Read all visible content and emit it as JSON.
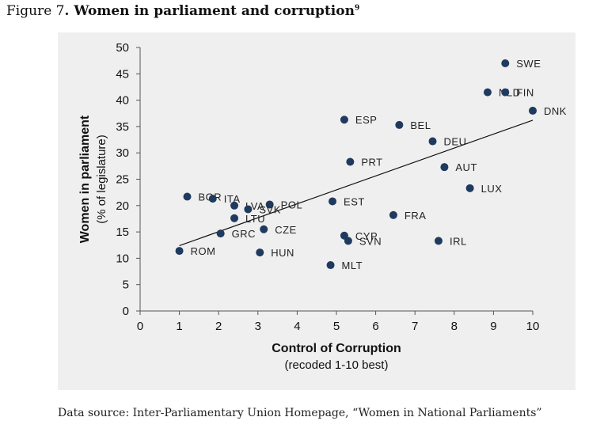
{
  "figure": {
    "number": "Figure 7",
    "separator": ". ",
    "title": "Women in parliament and corruption",
    "footnote": "9"
  },
  "source": "Data source: Inter-Parliamentary Union Homepage, “Women in National Parliaments”",
  "chart_data": {
    "type": "scatter",
    "title": "",
    "xlabel": "Control of Corruption",
    "xlabel_sub": "(recoded 1-10 best)",
    "ylabel": "Women in parliament",
    "ylabel_sub": "(% of legislature)",
    "xlim": [
      0,
      10
    ],
    "ylim": [
      0,
      50
    ],
    "xticks": [
      0,
      1,
      2,
      3,
      4,
      5,
      6,
      7,
      8,
      9,
      10
    ],
    "yticks": [
      0,
      5,
      10,
      15,
      20,
      25,
      30,
      35,
      40,
      45,
      50
    ],
    "grid": false,
    "legend": "none",
    "point_color": "#1f3a5f",
    "trendline": {
      "x": [
        1.0,
        10.0
      ],
      "y": [
        12.4,
        36.2
      ]
    },
    "points": [
      {
        "label": "SWE",
        "x": 9.3,
        "y": 47.0
      },
      {
        "label": "NLD",
        "x": 8.85,
        "y": 41.5
      },
      {
        "label": "FIN",
        "x": 9.3,
        "y": 41.5
      },
      {
        "label": "DNK",
        "x": 10.0,
        "y": 38.0
      },
      {
        "label": "ESP",
        "x": 5.2,
        "y": 36.3
      },
      {
        "label": "BEL",
        "x": 6.6,
        "y": 35.3
      },
      {
        "label": "DEU",
        "x": 7.45,
        "y": 32.2
      },
      {
        "label": "PRT",
        "x": 5.35,
        "y": 28.3
      },
      {
        "label": "AUT",
        "x": 7.75,
        "y": 27.3
      },
      {
        "label": "LUX",
        "x": 8.4,
        "y": 23.3
      },
      {
        "label": "BGR",
        "x": 1.2,
        "y": 21.7
      },
      {
        "label": "ITA",
        "x": 1.85,
        "y": 21.3
      },
      {
        "label": "EST",
        "x": 4.9,
        "y": 20.8
      },
      {
        "label": "POL",
        "x": 3.3,
        "y": 20.2
      },
      {
        "label": "LVA",
        "x": 2.4,
        "y": 20.0
      },
      {
        "label": "SVK",
        "x": 2.75,
        "y": 19.3
      },
      {
        "label": "FRA",
        "x": 6.45,
        "y": 18.2
      },
      {
        "label": "LTU",
        "x": 2.4,
        "y": 17.6
      },
      {
        "label": "CZE",
        "x": 3.15,
        "y": 15.5
      },
      {
        "label": "GRC",
        "x": 2.05,
        "y": 14.7
      },
      {
        "label": "CYP",
        "x": 5.2,
        "y": 14.3
      },
      {
        "label": "SVN",
        "x": 5.3,
        "y": 13.3
      },
      {
        "label": "IRL",
        "x": 7.6,
        "y": 13.3
      },
      {
        "label": "ROM",
        "x": 1.0,
        "y": 11.4
      },
      {
        "label": "HUN",
        "x": 3.05,
        "y": 11.1
      },
      {
        "label": "MLT",
        "x": 4.85,
        "y": 8.7
      }
    ]
  }
}
